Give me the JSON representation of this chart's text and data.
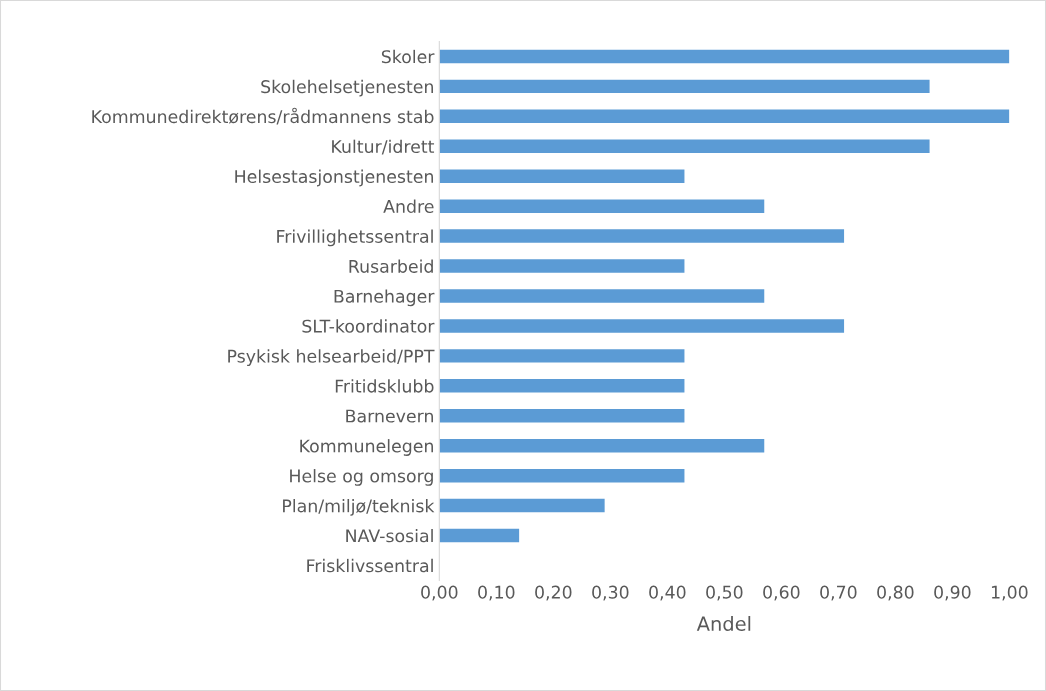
{
  "chart_data": {
    "type": "bar",
    "orientation": "horizontal",
    "xlabel": "Andel",
    "categories": [
      "Skoler",
      "Skolehelsetjenesten",
      "Kommunedirektørens/rådmannens stab",
      "Kultur/idrett",
      "Helsestasjonstjenesten",
      "Andre",
      "Frivillighetssentral",
      "Rusarbeid",
      "Barnehager",
      "SLT-koordinator",
      "Psykisk helsearbeid/PPT",
      "Fritidsklubb",
      "Barnevern",
      "Kommunelegen",
      "Helse og omsorg",
      "Plan/miljø/teknisk",
      "NAV-sosial",
      "Frisklivssentral"
    ],
    "values": [
      1.0,
      0.86,
      1.0,
      0.86,
      0.43,
      0.57,
      0.71,
      0.43,
      0.57,
      0.71,
      0.43,
      0.43,
      0.43,
      0.57,
      0.43,
      0.29,
      0.14,
      0.0
    ],
    "color": "#5b9bd5",
    "xlim": [
      0,
      1
    ],
    "xticks": [
      {
        "value": 0,
        "label": "0,00"
      },
      {
        "value": 0.1,
        "label": "0,10"
      },
      {
        "value": 0.2,
        "label": "0,20"
      },
      {
        "value": 0.3,
        "label": "0,30"
      },
      {
        "value": 0.4,
        "label": "0,40"
      },
      {
        "value": 0.5,
        "label": "0,50"
      },
      {
        "value": 0.6,
        "label": "0,60"
      },
      {
        "value": 0.7,
        "label": "0,70"
      },
      {
        "value": 0.8,
        "label": "0,80"
      },
      {
        "value": 0.9,
        "label": "0,90"
      },
      {
        "value": 1.0,
        "label": "1,00"
      }
    ],
    "grid": false,
    "legend": false
  }
}
